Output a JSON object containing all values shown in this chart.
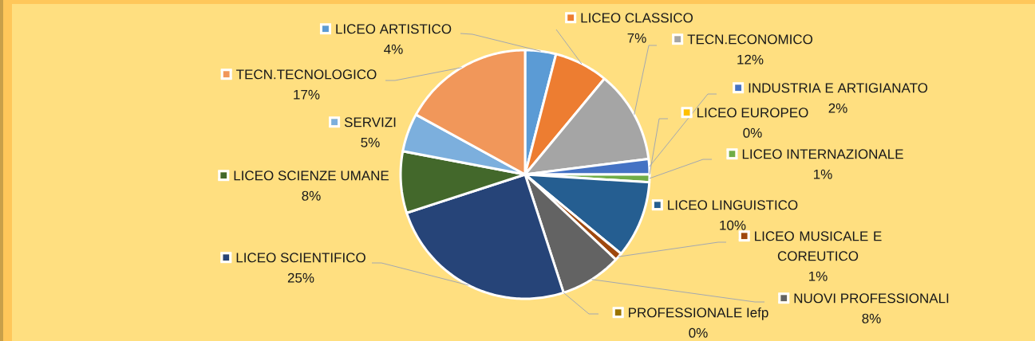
{
  "chart_data": {
    "type": "pie",
    "categories": [
      "LICEO ARTISTICO",
      "LICEO CLASSICO",
      "TECN.ECONOMICO",
      "INDUSTRIA E ARTIGIANATO",
      "LICEO EUROPEO",
      "LICEO INTERNAZIONALE",
      "LICEO LINGUISTICO",
      "LICEO MUSICALE E COREUTICO",
      "NUOVI PROFESSIONALI",
      "PROFESSIONALE Iefp",
      "LICEO SCIENTIFICO",
      "LICEO SCIENZE UMANE",
      "SERVIZI",
      "TECN.TECNOLOGICO"
    ],
    "values": [
      4,
      7,
      12,
      2,
      0,
      1,
      10,
      1,
      8,
      0,
      25,
      8,
      5,
      17
    ],
    "colors": [
      "#5b9bd5",
      "#ed7d31",
      "#a5a5a5",
      "#4472c4",
      "#ffc000",
      "#70ad47",
      "#255e91",
      "#9e480e",
      "#636363",
      "#997300",
      "#264478",
      "#43682b",
      "#7cafdd",
      "#f1975a"
    ],
    "value_labels": [
      "4%",
      "7%",
      "12%",
      "2%",
      "0%",
      "1%",
      "10%",
      "1%",
      "8%",
      "0%",
      "25%",
      "8%",
      "5%",
      "17%"
    ],
    "legend": true
  }
}
